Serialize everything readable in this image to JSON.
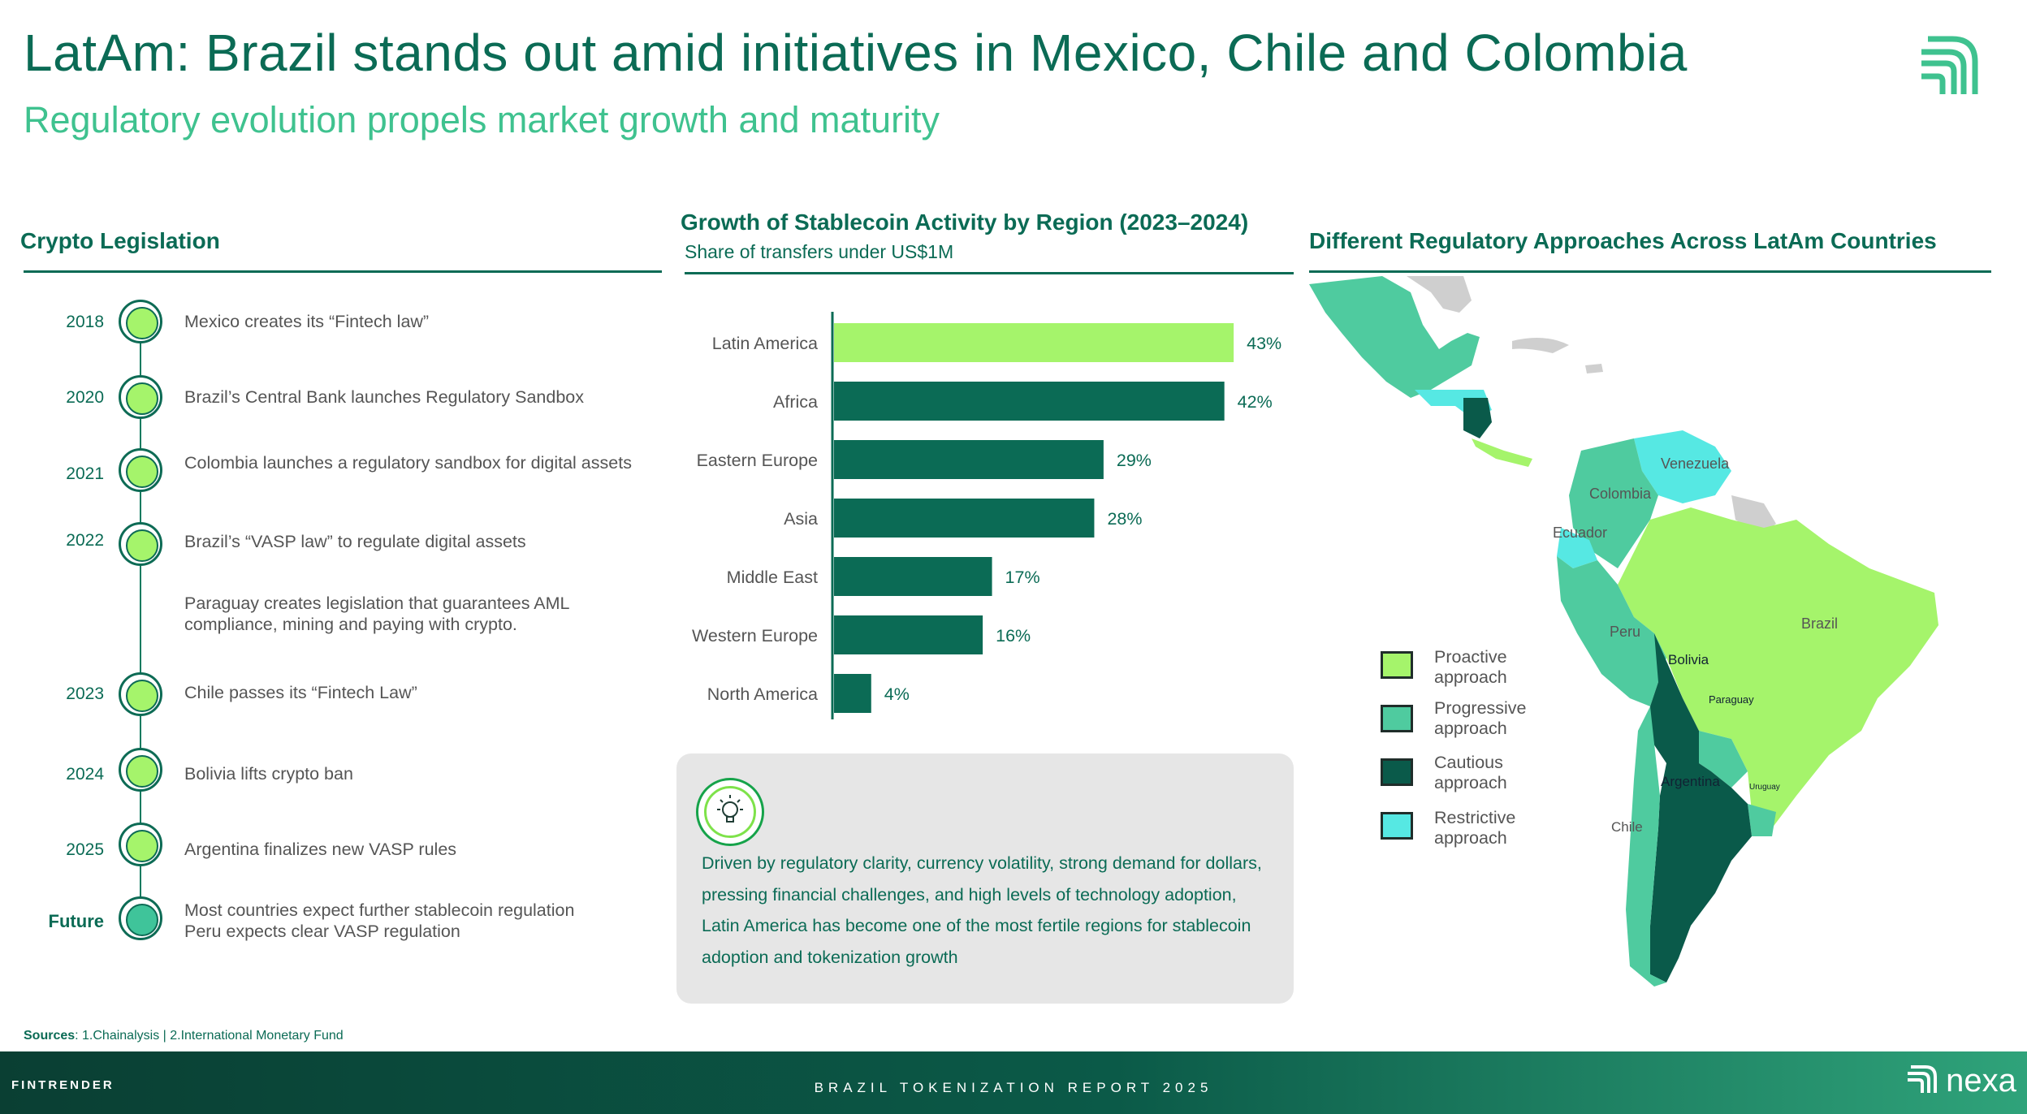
{
  "header": {
    "title": "LatAm: Brazil stands out amid initiatives in Mexico, Chile and Colombia",
    "subtitle": "Regulatory evolution propels market growth and maturity"
  },
  "legislation": {
    "heading": "Crypto Legislation",
    "events": [
      {
        "year": "2018",
        "text": "Mexico creates its “Fintech law”"
      },
      {
        "year": "2020",
        "text": "Brazil’s Central Bank launches Regulatory Sandbox"
      },
      {
        "year": "2021",
        "text": "Colombia launches a regulatory sandbox for digital assets"
      },
      {
        "year": "2022",
        "text": "Brazil’s “VASP law” to regulate digital assets"
      },
      {
        "year": "",
        "text": "Paraguay creates legislation that guarantees AML compliance, mining and paying with crypto."
      },
      {
        "year": "2023",
        "text": "Chile passes its “Fintech Law”"
      },
      {
        "year": "2024",
        "text": "Bolivia lifts crypto ban"
      },
      {
        "year": "2025",
        "text": "Argentina finalizes new VASP rules"
      },
      {
        "year": "Future",
        "text": "Most countries expect further stablecoin regulation\nPeru expects clear VASP regulation"
      }
    ]
  },
  "chart_data": {
    "type": "bar",
    "orientation": "horizontal",
    "title": "Growth of Stablecoin Activity by Region (2023–2024)",
    "subtitle": "Share of transfers under US$1M",
    "categories": [
      "Latin America",
      "Africa",
      "Eastern Europe",
      "Asia",
      "Middle East",
      "Western Europe",
      "North America"
    ],
    "values": [
      43,
      42,
      29,
      28,
      17,
      16,
      4
    ],
    "value_labels": [
      "43%",
      "42%",
      "29%",
      "28%",
      "17%",
      "16%",
      "4%"
    ],
    "xlim": [
      0,
      45
    ],
    "colors": [
      "#a5f46b",
      "#0b6b55",
      "#0b6b55",
      "#0b6b55",
      "#0b6b55",
      "#0b6b55",
      "#0b6b55"
    ],
    "xlabel": "",
    "ylabel": ""
  },
  "insight": {
    "text": "Driven by regulatory clarity, currency volatility, strong demand for dollars, pressing financial challenges, and high levels of technology adoption, Latin America has become one of the most fertile regions for stablecoin adoption and tokenization growth"
  },
  "map": {
    "heading": "Different Regulatory Approaches Across LatAm Countries",
    "legend": [
      {
        "label": "Proactive approach",
        "color": "#a5f46b"
      },
      {
        "label": "Progressive approach",
        "color": "#4fcb9f"
      },
      {
        "label": "Cautious approach",
        "color": "#0a5a4a"
      },
      {
        "label": "Restrictive approach",
        "color": "#56e8e3"
      }
    ],
    "country_labels": {
      "venezuela": "Venezuela",
      "colombia": "Colombia",
      "ecuador": "Ecuador",
      "peru": "Peru",
      "brazil": "Brazil",
      "bolivia": "Bolivia",
      "paraguay": "Paraguay",
      "argentina": "Argentina",
      "uruguay": "Uruguay",
      "chile": "Chile"
    }
  },
  "sources": {
    "label": "Sources",
    "text": ": 1.Chainalysis | 2.International Monetary Fund"
  },
  "footer": {
    "left": "FINTRENDER",
    "center": "BRAZIL TOKENIZATION REPORT 2025",
    "right": "nexa"
  }
}
